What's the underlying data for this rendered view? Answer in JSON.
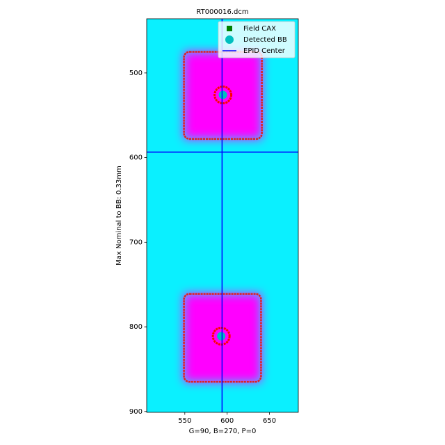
{
  "chart_data": {
    "type": "image",
    "title": "RT000016.dcm",
    "xlabel": "G=90, B=270, P=0",
    "ylabel": "Max Nominal to BB: 0.33mm",
    "xlim": [
      505,
      684
    ],
    "ylim": [
      901,
      436
    ],
    "xticks": [
      550,
      600,
      650
    ],
    "yticks": [
      500,
      600,
      700,
      800,
      900
    ],
    "background": "#0af0ff",
    "field_color": "#ff00ff",
    "edge_color": "#e02020",
    "fields": [
      {
        "x": [
          549,
          641
        ],
        "y": [
          475,
          578
        ]
      },
      {
        "x": [
          549,
          640
        ],
        "y": [
          761,
          865
        ]
      }
    ],
    "series": [
      {
        "name": "Field CAX",
        "color": "green",
        "marker": "square",
        "x": [
          595,
          593
        ],
        "y": [
          526,
          811
        ]
      },
      {
        "name": "Detected BB",
        "color": "#00bfbf",
        "marker": "circle",
        "x": [
          595,
          593
        ],
        "y": [
          526,
          811
        ]
      },
      {
        "name": "EPID Center",
        "color": "blue",
        "marker": "line",
        "x": [
          594
        ],
        "y": [
          593.5
        ]
      }
    ],
    "legend": "upper right"
  }
}
